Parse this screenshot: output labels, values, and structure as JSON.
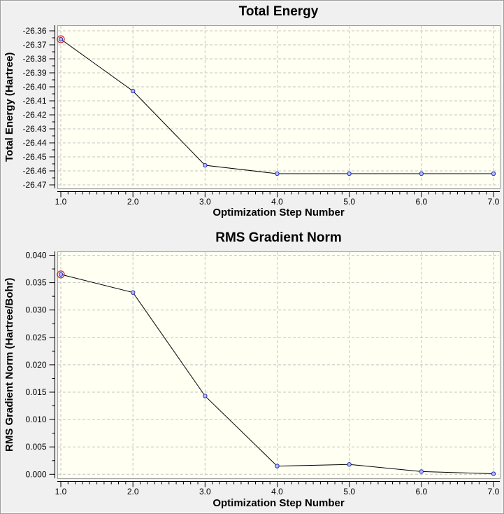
{
  "colors": {
    "window_bg": "#f0f0f0",
    "plot_bg": "#fffff2",
    "plot_border": "#a0a0a0",
    "grid": "#c4c4c4",
    "axis": "#000000",
    "line": "#000000",
    "marker_fill": "#b4bcf4",
    "marker_stroke": "#2830c0",
    "highlight_ring": "#d02828"
  },
  "chart_data": [
    {
      "type": "line",
      "title": "Total Energy",
      "xlabel": "Optimization Step Number",
      "ylabel": "Total Energy (Hartree)",
      "x": [
        1,
        2,
        3,
        4,
        5,
        6,
        7
      ],
      "values": [
        -26.366,
        -26.403,
        -26.456,
        -26.462,
        -26.462,
        -26.462,
        -26.462
      ],
      "xlim": [
        1,
        7
      ],
      "ylim": [
        -26.47,
        -26.36
      ],
      "x_tick_labels": [
        "1.0",
        "2.0",
        "3.0",
        "4.0",
        "5.0",
        "6.0",
        "7.0"
      ],
      "y_tick_labels": [
        "-26.36",
        "-26.37",
        "-26.38",
        "-26.39",
        "-26.40",
        "-26.41",
        "-26.42",
        "-26.43",
        "-26.44",
        "-26.45",
        "-26.46",
        "-26.47"
      ],
      "x_minor_per_major": 10,
      "grid": true,
      "legend": "none",
      "highlighted_point": 1
    },
    {
      "type": "line",
      "title": "RMS Gradient Norm",
      "xlabel": "Optimization Step Number",
      "ylabel": "RMS Gradient Norm (Hartree/Bohr)",
      "x": [
        1,
        2,
        3,
        4,
        5,
        6,
        7
      ],
      "values": [
        0.0365,
        0.0332,
        0.0143,
        0.0015,
        0.0018,
        0.0005,
        0.0001
      ],
      "xlim": [
        1,
        7
      ],
      "ylim": [
        0.0,
        0.04
      ],
      "x_tick_labels": [
        "1.0",
        "2.0",
        "3.0",
        "4.0",
        "5.0",
        "6.0",
        "7.0"
      ],
      "y_tick_labels": [
        "0.040",
        "0.035",
        "0.030",
        "0.025",
        "0.020",
        "0.015",
        "0.010",
        "0.005",
        "0.000"
      ],
      "x_minor_per_major": 10,
      "grid": true,
      "legend": "none",
      "highlighted_point": 1
    }
  ]
}
